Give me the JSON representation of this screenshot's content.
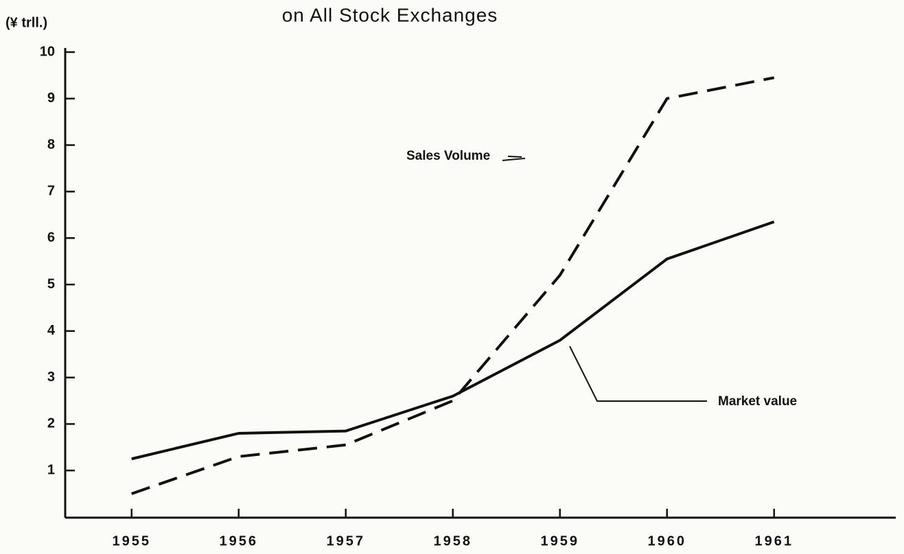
{
  "chart_data": {
    "type": "line",
    "title": "on All Stock Exchanges",
    "y_axis_label": "(¥ trll.)",
    "x": [
      1955,
      1956,
      1957,
      1958,
      1959,
      1960,
      1961
    ],
    "series": [
      {
        "name": "Market value",
        "color": "#111111",
        "dash": false,
        "values": [
          1.25,
          1.8,
          1.85,
          2.6,
          3.8,
          5.55,
          6.35
        ]
      },
      {
        "name": "Sales Volume",
        "color": "#111111",
        "dash": true,
        "values": [
          0.5,
          1.3,
          1.55,
          2.5,
          5.2,
          9.0,
          9.45
        ]
      }
    ],
    "xlim": [
      1954.38,
      1961.63
    ],
    "xticks": [
      1955,
      1956,
      1957,
      1958,
      1959,
      1960,
      1961
    ],
    "ylim": [
      0,
      10
    ],
    "yticks": [
      1,
      2,
      3,
      4,
      5,
      6,
      7,
      8,
      9,
      10
    ],
    "grid": false
  }
}
